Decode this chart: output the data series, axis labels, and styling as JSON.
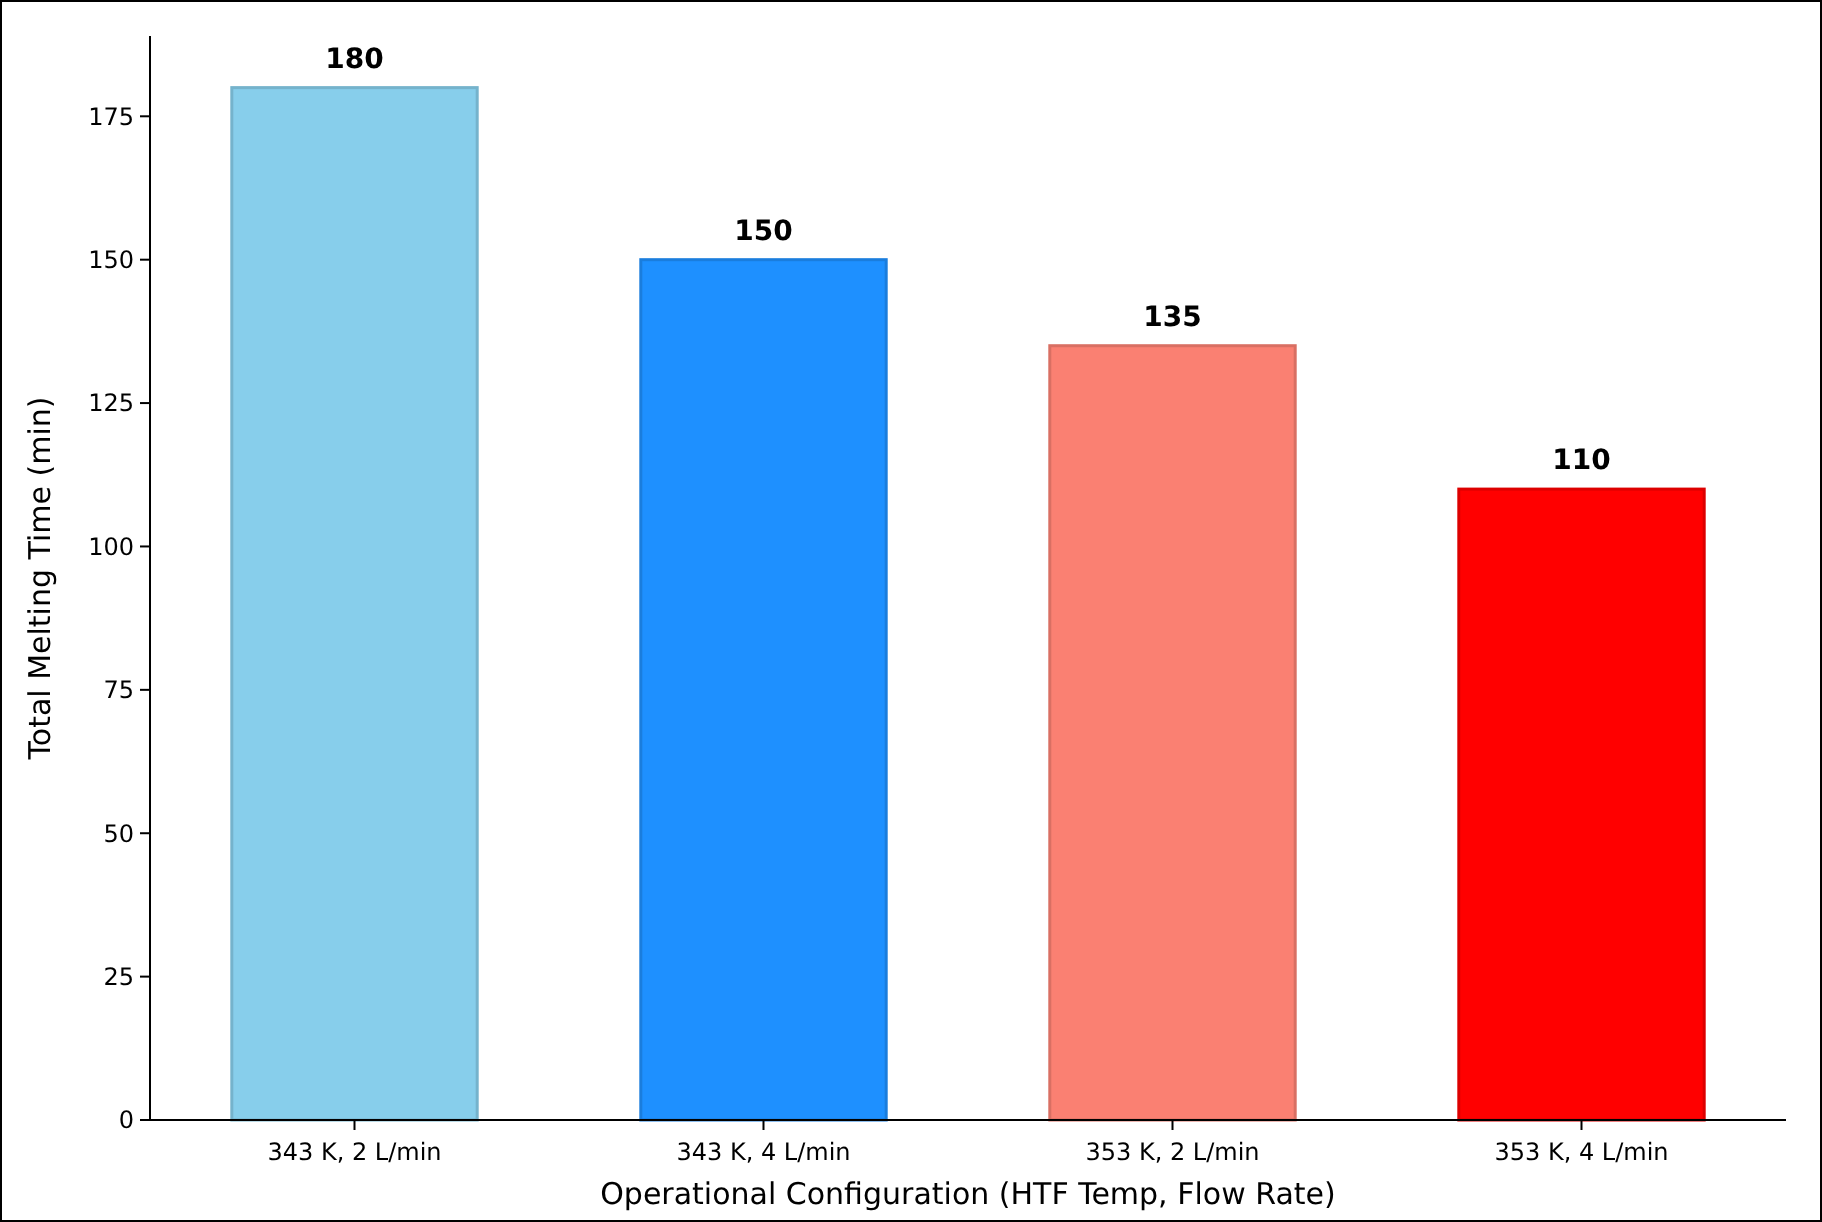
{
  "chart_data": {
    "type": "bar",
    "xlabel": "Operational Configuration (HTF Temp, Flow Rate)",
    "ylabel": "Total Melting Time (min)",
    "categories": [
      "343 K, 2 L/min",
      "343 K, 4 L/min",
      "353 K, 2 L/min",
      "353 K, 4 L/min"
    ],
    "values": [
      180,
      150,
      135,
      110
    ],
    "colors": [
      "#87ceeb",
      "#1e90ff",
      "#fa8072",
      "#ff0000"
    ],
    "ylim": [
      0,
      189
    ],
    "yticks": [
      0,
      25,
      50,
      75,
      100,
      125,
      150,
      175
    ],
    "data_labels": true,
    "grid": false
  }
}
